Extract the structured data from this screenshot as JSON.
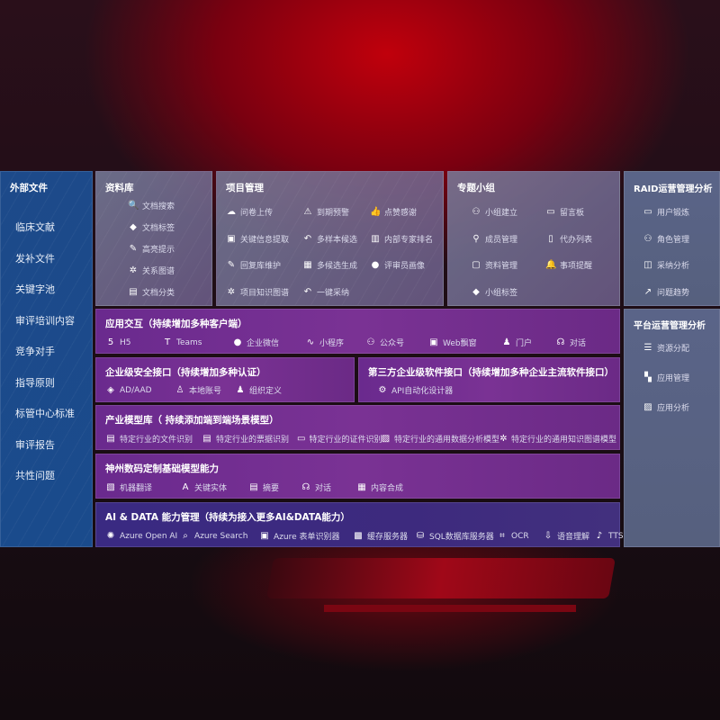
{
  "external": {
    "title": "外部文件",
    "items": [
      "临床文献",
      "发补文件",
      "关键字池",
      "审评培训内容",
      "竞争对手",
      "指导原则",
      "标管中心标准",
      "审评报告",
      "共性问题"
    ]
  },
  "library": {
    "title": "资料库",
    "items": [
      {
        "icon": "doc-search-icon",
        "label": "文档搜索"
      },
      {
        "icon": "tag-icon",
        "label": "文档标签"
      },
      {
        "icon": "pen-icon",
        "label": "高亮提示"
      },
      {
        "icon": "graph-icon",
        "label": "关系图谱"
      },
      {
        "icon": "doc-stack-icon",
        "label": "文档分类"
      }
    ]
  },
  "project": {
    "title": "项目管理",
    "items": [
      {
        "icon": "cloud-upload-icon",
        "label": "问卷上传"
      },
      {
        "icon": "alarm-icon",
        "label": "到期预警"
      },
      {
        "icon": "thumbs-up-icon",
        "label": "点赞感谢"
      },
      {
        "icon": "window-icon",
        "label": "关键信息提取"
      },
      {
        "icon": "reply-icon",
        "label": "多样本候选"
      },
      {
        "icon": "ranking-icon",
        "label": "内部专家排名"
      },
      {
        "icon": "pen-icon",
        "label": "回复库维护"
      },
      {
        "icon": "puzzle-icon",
        "label": "多候选生成"
      },
      {
        "icon": "person-icon",
        "label": "评审员画像"
      },
      {
        "icon": "graph-icon",
        "label": "项目知识图谱"
      },
      {
        "icon": "reply-icon",
        "label": "一键采纳"
      }
    ]
  },
  "group": {
    "title": "专题小组",
    "items": [
      {
        "icon": "users-icon",
        "label": "小组建立"
      },
      {
        "icon": "bbs-icon",
        "label": "留言板"
      },
      {
        "icon": "user-add-icon",
        "label": "成员管理"
      },
      {
        "icon": "clipboard-icon",
        "label": "代办列表"
      },
      {
        "icon": "folder-icon",
        "label": "资料管理"
      },
      {
        "icon": "bell-icon",
        "label": "事项提醒"
      },
      {
        "icon": "tag-icon",
        "label": "小组标签"
      }
    ]
  },
  "raid": {
    "title": "RAID运营管理分析",
    "items": [
      {
        "icon": "id-card-icon",
        "label": "用户锻炼"
      },
      {
        "icon": "users-icon",
        "label": "角色管理"
      },
      {
        "icon": "qa-icon",
        "label": "采纳分析"
      },
      {
        "icon": "trend-icon",
        "label": "问题趋势"
      }
    ]
  },
  "platform": {
    "title": "平台运营管理分析",
    "items": [
      {
        "icon": "checklist-icon",
        "label": "资源分配"
      },
      {
        "icon": "apps-icon",
        "label": "应用管理"
      },
      {
        "icon": "chart-icon",
        "label": "应用分析"
      }
    ]
  },
  "app": {
    "title": "应用交互（持续增加多种客户端）",
    "items": [
      {
        "icon": "html5-icon",
        "label": "H5"
      },
      {
        "icon": "teams-icon",
        "label": "Teams"
      },
      {
        "icon": "wechat-icon",
        "label": "企业微信"
      },
      {
        "icon": "miniprogram-icon",
        "label": "小程序"
      },
      {
        "icon": "users-icon",
        "label": "公众号"
      },
      {
        "icon": "window-icon",
        "label": "Web飘窗"
      },
      {
        "icon": "portal-icon",
        "label": "门户"
      },
      {
        "icon": "chat-icon",
        "label": "对话"
      }
    ]
  },
  "security": {
    "title": "企业级安全接口（持续增加多种认证）",
    "items": [
      {
        "icon": "ad-icon",
        "label": "AD/AAD"
      },
      {
        "icon": "user-icon",
        "label": "本地账号"
      },
      {
        "icon": "org-icon",
        "label": "组织定义"
      }
    ]
  },
  "thirdparty": {
    "title": "第三方企业级软件接口（持续增加多种企业主流软件接口）",
    "items": [
      {
        "icon": "gear-icon",
        "label": "API自动化设计器"
      }
    ]
  },
  "industry": {
    "title": "产业模型库（ 持续添加端到端场景模型）",
    "items": [
      {
        "icon": "file-icon",
        "label": "特定行业的文件识别"
      },
      {
        "icon": "receipt-icon",
        "label": "特定行业的票据识别"
      },
      {
        "icon": "id-card-icon",
        "label": "特定行业的证件识别"
      },
      {
        "icon": "chart-icon",
        "label": "特定行业的通用数据分析模型"
      },
      {
        "icon": "graph-icon",
        "label": "特定行业的通用知识图谱模型"
      }
    ]
  },
  "base": {
    "title": "神州数码定制基础模型能力",
    "items": [
      {
        "icon": "translate-icon",
        "label": "机器翻译"
      },
      {
        "icon": "entity-icon",
        "label": "关键实体"
      },
      {
        "icon": "summary-icon",
        "label": "摘要"
      },
      {
        "icon": "chat-icon",
        "label": "对话"
      },
      {
        "icon": "puzzle-icon",
        "label": "内容合成"
      }
    ]
  },
  "ai": {
    "title": "AI & DATA 能力管理（持续为接入更多AI&DATA能力）",
    "items": [
      {
        "icon": "openai-icon",
        "label": "Azure Open AI"
      },
      {
        "icon": "search-icon",
        "label": "Azure Search"
      },
      {
        "icon": "form-icon",
        "label": "Azure 表单识别器"
      },
      {
        "icon": "cache-icon",
        "label": "缓存服务器"
      },
      {
        "icon": "sql-icon",
        "label": "SQL数据库服务器"
      },
      {
        "icon": "ocr-icon",
        "label": "OCR"
      },
      {
        "icon": "speech-icon",
        "label": "语音理解"
      },
      {
        "icon": "tts-icon",
        "label": "TTS"
      }
    ]
  }
}
